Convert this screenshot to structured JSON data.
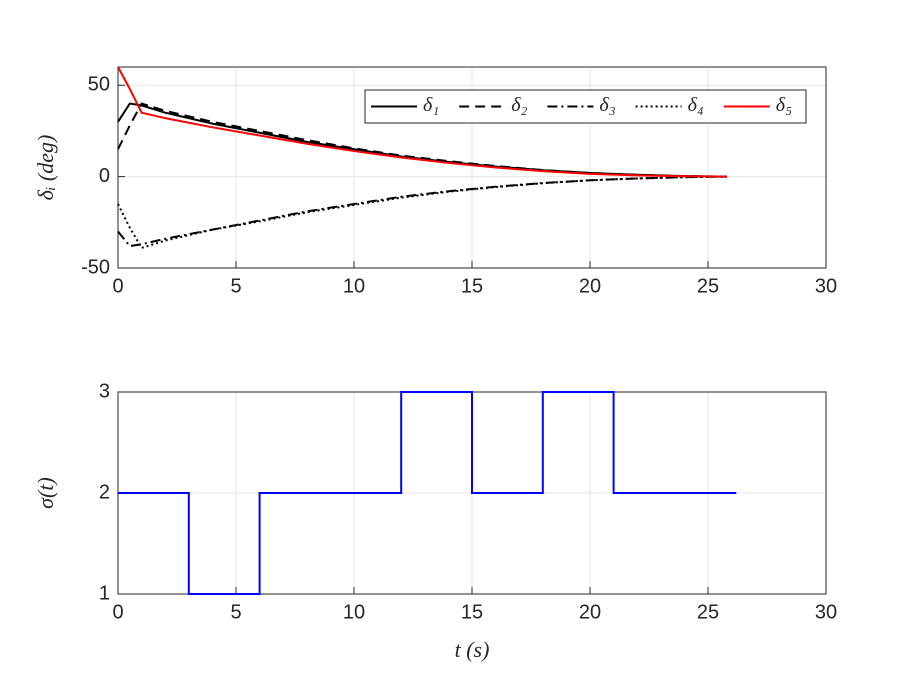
{
  "chart_data": [
    {
      "type": "line",
      "ylabel": "δᵢ (deg)",
      "x": [
        0,
        0.5,
        1,
        2,
        4,
        6,
        8,
        10,
        12,
        14,
        16,
        18,
        20,
        22,
        24,
        25.8
      ],
      "series": [
        {
          "name": "δ₁",
          "color": "#000000",
          "dash": "solid",
          "values": [
            30,
            40,
            39,
            35,
            29,
            24,
            19,
            15,
            11,
            8,
            5.5,
            3.5,
            2,
            1,
            0.3,
            0
          ]
        },
        {
          "name": "δ₂",
          "color": "#000000",
          "dash": "dashed",
          "values": [
            15,
            28,
            40,
            36,
            30,
            25,
            20,
            15.5,
            11.5,
            8.5,
            5.8,
            3.6,
            2,
            1,
            0.3,
            0
          ]
        },
        {
          "name": "δ₃",
          "color": "#000000",
          "dash": "dashdot",
          "values": [
            -30,
            -38,
            -37,
            -34,
            -29,
            -24,
            -19,
            -15,
            -11,
            -8,
            -5.5,
            -3.5,
            -2,
            -1,
            -0.3,
            0
          ]
        },
        {
          "name": "δ₄",
          "color": "#000000",
          "dash": "dotted",
          "values": [
            -15,
            -28,
            -39,
            -35,
            -29,
            -24.5,
            -19.5,
            -15.5,
            -11.5,
            -8.3,
            -5.7,
            -3.6,
            -2,
            -1,
            -0.3,
            0
          ]
        },
        {
          "name": "δ₅",
          "color": "#ff0000",
          "dash": "solid",
          "values": [
            60,
            48,
            35,
            32,
            27,
            22.5,
            18,
            14,
            10.5,
            7.5,
            5,
            3,
            1.5,
            0.7,
            0.2,
            0
          ]
        }
      ],
      "xlim": [
        0,
        30
      ],
      "xticks": [
        0,
        5,
        10,
        15,
        20,
        25,
        30
      ],
      "ylim": [
        -50,
        60
      ],
      "yticks": [
        -50,
        0,
        50
      ],
      "grid": true,
      "legend": "top-right"
    },
    {
      "type": "line",
      "ylabel": "σ(t)",
      "xlabel": "t (s)",
      "x": [
        0,
        3,
        3,
        6,
        6,
        12,
        12,
        15,
        15,
        18,
        18,
        21,
        21,
        26.2
      ],
      "series": [
        {
          "color": "#0000ff",
          "dash": "solid",
          "values": [
            2,
            2,
            1,
            1,
            2,
            2,
            3,
            3,
            2,
            2,
            3,
            3,
            2,
            2
          ]
        }
      ],
      "xlim": [
        0,
        30
      ],
      "xticks": [
        0,
        5,
        10,
        15,
        20,
        25,
        30
      ],
      "ylim": [
        1,
        3
      ],
      "yticks": [
        1,
        2,
        3
      ],
      "grid": true
    }
  ]
}
